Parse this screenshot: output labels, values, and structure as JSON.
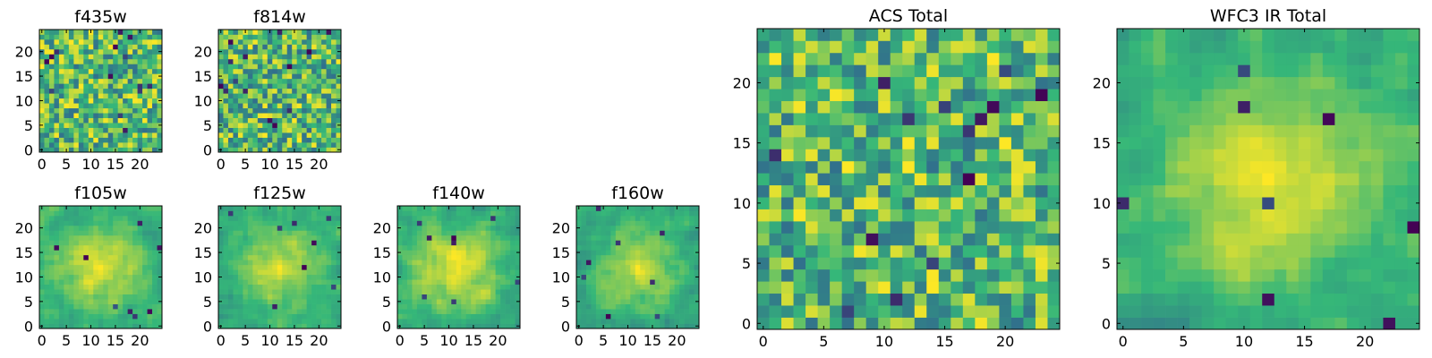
{
  "figure": {
    "background": "#ffffff"
  },
  "chart_data": {
    "type": "heatmap",
    "colormap": "viridis",
    "colormap_stops": [
      "#440154",
      "#31688e",
      "#35b779",
      "#fde725"
    ],
    "grid": false,
    "legend": "none",
    "panels": [
      {
        "id": "f435w",
        "title": "f435w",
        "size": 25,
        "xticks": [
          0,
          5,
          10,
          15,
          20
        ],
        "yticks": [
          0,
          5,
          10,
          15,
          20
        ],
        "pattern": "noise",
        "seed": 11
      },
      {
        "id": "f814w",
        "title": "f814w",
        "size": 25,
        "xticks": [
          0,
          5,
          10,
          15,
          20
        ],
        "yticks": [
          0,
          5,
          10,
          15,
          20
        ],
        "pattern": "noise",
        "seed": 23
      },
      {
        "id": "f105w",
        "title": "f105w",
        "size": 25,
        "xticks": [
          0,
          5,
          10,
          15,
          20
        ],
        "yticks": [
          0,
          5,
          10,
          15,
          20
        ],
        "pattern": "smooth",
        "seed": 37
      },
      {
        "id": "f125w",
        "title": "f125w",
        "size": 25,
        "xticks": [
          0,
          5,
          10,
          15,
          20
        ],
        "yticks": [
          0,
          5,
          10,
          15,
          20
        ],
        "pattern": "smooth",
        "seed": 41
      },
      {
        "id": "f140w",
        "title": "f140w",
        "size": 25,
        "xticks": [
          0,
          5,
          10,
          15,
          20
        ],
        "yticks": [
          0,
          5,
          10,
          15,
          20
        ],
        "pattern": "smooth",
        "seed": 53
      },
      {
        "id": "f160w",
        "title": "f160w",
        "size": 25,
        "xticks": [
          0,
          5,
          10,
          15,
          20
        ],
        "yticks": [
          0,
          5,
          10,
          15,
          20
        ],
        "pattern": "smooth",
        "seed": 67
      },
      {
        "id": "acs-total",
        "title": "ACS Total",
        "size": 25,
        "xticks": [
          0,
          5,
          10,
          15,
          20
        ],
        "yticks": [
          0,
          5,
          10,
          15,
          20
        ],
        "pattern": "noise",
        "seed": 79
      },
      {
        "id": "wfc3-ir-total",
        "title": "WFC3 IR Total",
        "size": 25,
        "xticks": [
          0,
          5,
          10,
          15,
          20
        ],
        "yticks": [
          0,
          5,
          10,
          15,
          20
        ],
        "pattern": "smooth",
        "seed": 97
      }
    ]
  }
}
